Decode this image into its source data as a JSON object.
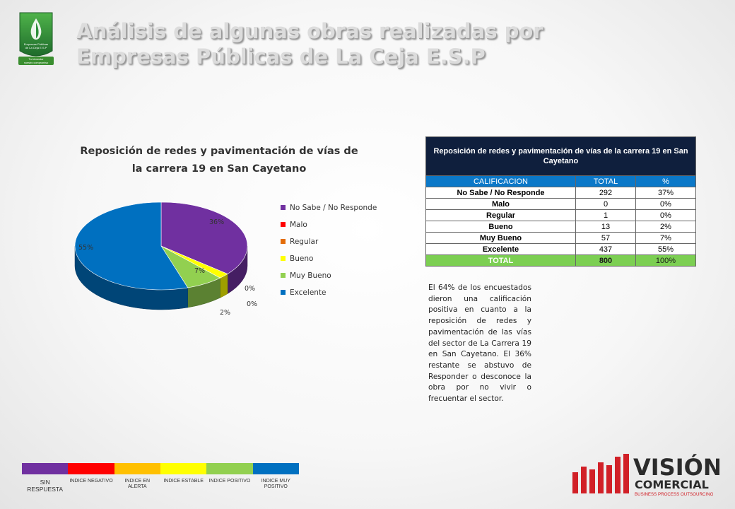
{
  "header": {
    "title_line1": "Análisis de algunas obras realizadas por",
    "title_line2": "Empresas Públicas de La Ceja E.S.P"
  },
  "logo": {
    "icon": "water-drop-leaf-icon",
    "text": "Empresas Públicas de La Ceja E.S.P",
    "slogan": "Tu bienestar nuestro compromiso",
    "colors": {
      "primary": "#2d8f3a",
      "drop": "#1f6fb5"
    }
  },
  "chart_data": {
    "type": "pie",
    "title_line1": "Reposición de redes y pavimentación de vías de",
    "title_line2": "la carrera 19 en San Cayetano",
    "categories": [
      "No Sabe / No Responde",
      "Malo",
      "Regular",
      "Bueno",
      "Muy Bueno",
      "Excelente"
    ],
    "values": [
      36,
      0,
      0,
      2,
      7,
      55
    ],
    "data_labels": [
      "36%",
      "0%",
      "0%",
      "2%",
      "7%",
      "55%"
    ],
    "colors": [
      "#7030a0",
      "#ff0000",
      "#e36c09",
      "#ffff00",
      "#92d050",
      "#0070c0"
    ],
    "legend_position": "right"
  },
  "table": {
    "title": "Reposición de redes y pavimentación de vías de la carrera 19 en San Cayetano",
    "columns": [
      "CALIFICACION",
      "TOTAL",
      "%"
    ],
    "rows": [
      [
        "No Sabe / No Responde",
        "292",
        "37%"
      ],
      [
        "Malo",
        "0",
        "0%"
      ],
      [
        "Regular",
        "1",
        "0%"
      ],
      [
        "Bueno",
        "13",
        "2%"
      ],
      [
        "Muy Bueno",
        "57",
        "7%"
      ],
      [
        "Excelente",
        "437",
        "55%"
      ]
    ],
    "total": [
      "TOTAL",
      "800",
      "100%"
    ]
  },
  "description": "El 64% de los encuestados dieron una calificación positiva en cuanto a la reposición de redes y pavimentación de las vías del sector de La Carrera 19 en San Cayetano. El 36% restante se abstuvo de Responder o desconoce la obra por no vivir o frecuentar el sector.",
  "index_legend": [
    {
      "label": "SIN RESPUESTA",
      "color": "#7030a0"
    },
    {
      "label": "INDICE NEGATIVO",
      "color": "#ff0000"
    },
    {
      "label": "INDICE EN ALERTA",
      "color": "#ffc000"
    },
    {
      "label": "INDICE ESTABLE",
      "color": "#ffff00"
    },
    {
      "label": "INDICE POSITIVO",
      "color": "#92d050"
    },
    {
      "label": "INDICE MUY POSITIVO",
      "color": "#0070c0"
    }
  ],
  "brand": {
    "name": "VISIÓN",
    "name2": "COMERCIAL",
    "tagline": "BUSINESS PROCESS OUTSOURCING",
    "colors": {
      "red": "#d12027",
      "dark": "#2b2b2b"
    }
  }
}
